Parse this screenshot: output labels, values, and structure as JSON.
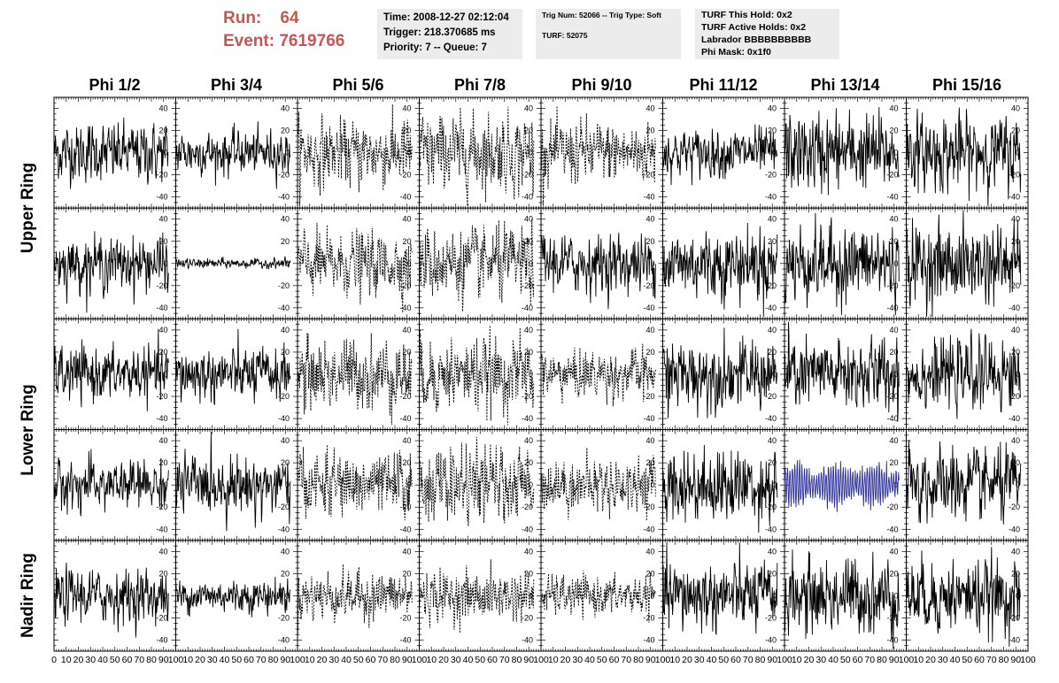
{
  "header": {
    "run_label": "Run:",
    "run_value": "64",
    "event_label": "Event:",
    "event_value": "7619766"
  },
  "info_box_1": {
    "line1": "Time: 2008-12-27 02:12:04",
    "line2": "Trigger: 218.370685 ms",
    "line3": "Priority: 7 -- Queue: 7"
  },
  "info_box_2": {
    "line1": "Trig Num: 52066 -- Trig Type: Soft",
    "line2": "TURF: 52075"
  },
  "info_box_3": {
    "line1": "TURF This Hold: 0x2",
    "line2": "TURF Active Holds: 0x2",
    "line3": "Labrador BBBBBBBBBB",
    "line4": "Phi Mask: 0x1f0"
  },
  "colors": {
    "run_text": "#c8554f",
    "info_bg": "#ececec",
    "trace": "#000000",
    "highlight_trace": "#2b2f9c"
  },
  "chart_data": {
    "type": "line",
    "layout": "grid of waveform panels, 8 columns x 5 rows",
    "columns": [
      "Phi 1/2",
      "Phi 3/4",
      "Phi 5/6",
      "Phi 7/8",
      "Phi 9/10",
      "Phi 11/12",
      "Phi 13/14",
      "Phi 15/16"
    ],
    "rows": [
      "Upper Ring",
      "Upper Ring",
      "Lower Ring",
      "Lower Ring",
      "Nadir Ring"
    ],
    "row_labels": [
      {
        "text": "Upper Ring",
        "spans": [
          0,
          1
        ]
      },
      {
        "text": "Lower Ring",
        "spans": [
          2,
          3
        ]
      },
      {
        "text": "Nadir Ring",
        "spans": [
          4,
          4
        ]
      }
    ],
    "xlim": [
      0,
      100
    ],
    "ylim": [
      -50,
      50
    ],
    "x_ticks_first": [
      "0",
      "10",
      "20",
      "30",
      "40",
      "50",
      "60",
      "70",
      "80",
      "90",
      "100"
    ],
    "x_ticks": [
      "10",
      "20",
      "30",
      "40",
      "50",
      "60",
      "70",
      "80",
      "90",
      "100"
    ],
    "y_ticks": [
      "40",
      "20",
      "0",
      "-20",
      "-40"
    ],
    "n_samples": 260,
    "trace_extent_x": [
      0,
      94
    ],
    "dashed_columns": [
      "Phi 5/6",
      "Phi 7/8",
      "Phi 9/10"
    ],
    "dashed_rows_exceptions": [
      "Upper Ring 2 / Phi 9/10"
    ],
    "panels": {
      "amplitude_rms": [
        [
          12,
          9,
          14,
          16,
          13,
          10,
          16,
          15
        ],
        [
          11,
          2,
          13,
          15,
          12,
          15,
          16,
          16
        ],
        [
          11,
          11,
          15,
          15,
          10,
          14,
          15,
          14
        ],
        [
          10,
          12,
          13,
          15,
          11,
          15,
          11,
          15
        ],
        [
          11,
          7,
          10,
          10,
          8,
          14,
          16,
          15
        ]
      ],
      "highlighted": [
        {
          "row": 3,
          "column": "Phi 13/14",
          "color": "#2b2f9c",
          "style": "sinusoidal",
          "amplitude": 20
        }
      ]
    },
    "title": "",
    "xlabel": "",
    "ylabel": ""
  }
}
